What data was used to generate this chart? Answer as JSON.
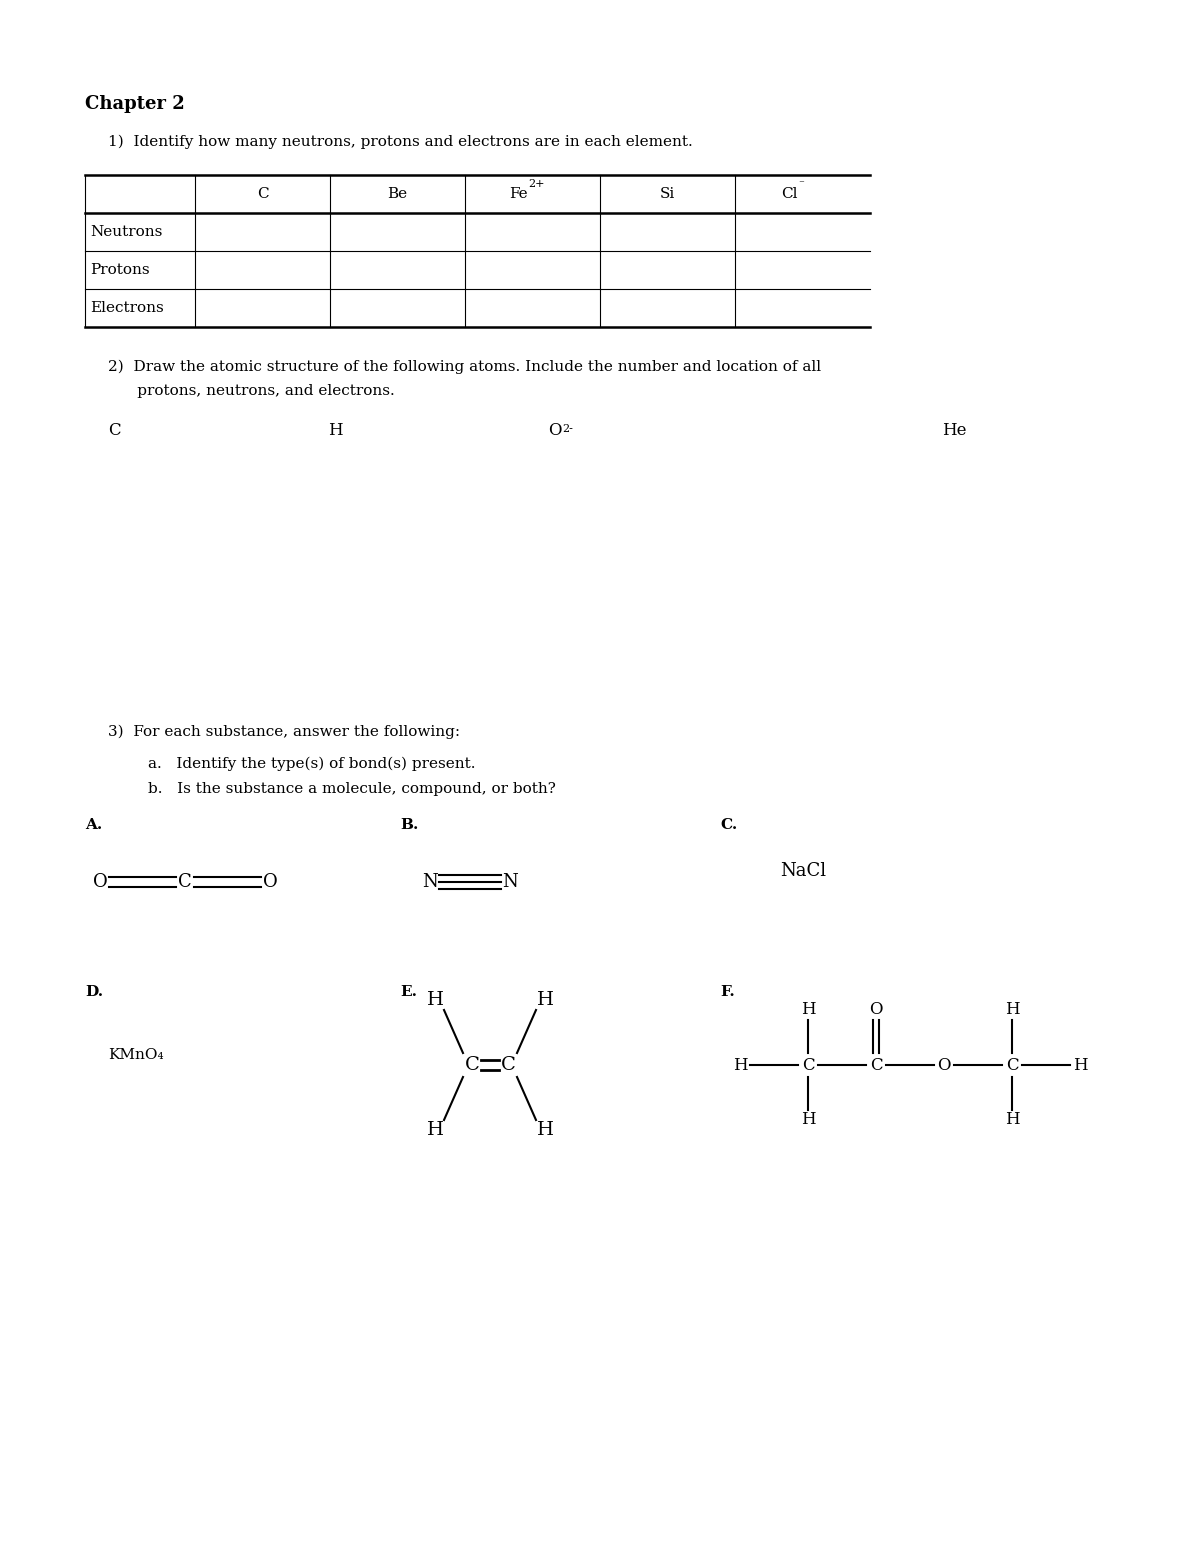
{
  "bg_color": "#ffffff",
  "title": "Chapter 2",
  "q1_text": "1)  Identify how many neutrons, protons and electrons are in each element.",
  "table_headers": [
    "",
    "C",
    "Be",
    "Fe",
    "Si",
    "Cl"
  ],
  "table_rows": [
    "Neutrons",
    "Protons",
    "Electrons"
  ],
  "q2_text_line1": "2)  Draw the atomic structure of the following atoms. Include the number and location of all",
  "q2_text_line2": "      protons, neutrons, and electrons.",
  "q3_text": "3)  For each substance, answer the following:",
  "q3_a": "a.   Identify the type(s) of bond(s) present.",
  "q3_b": "b.   Is the substance a molecule, compound, or both?",
  "font_family": "DejaVu Serif",
  "font_size_title": 13,
  "font_size_body": 11,
  "font_size_mol": 13
}
